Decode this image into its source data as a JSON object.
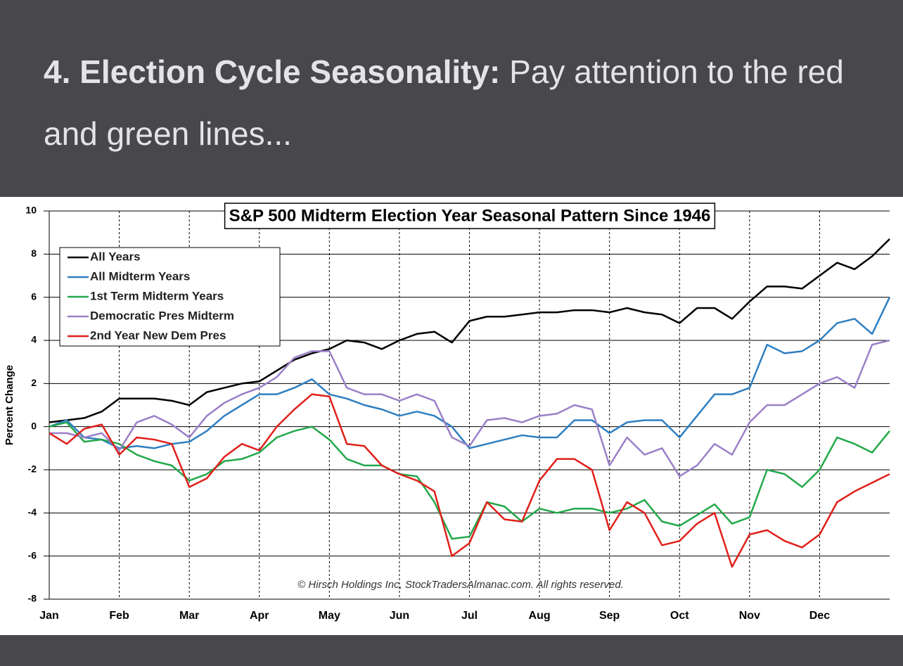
{
  "header": {
    "bold": "4. Election Cycle Seasonality:",
    "text": "Pay attention to the red and green lines..."
  },
  "chart_data": {
    "type": "line",
    "title": "S&P 500 Midterm Election Year  Seasonal Pattern Since 1946",
    "ylabel": "Percent Change",
    "annotation": "© Hirsch Holdings Inc, StockTradersAlmanac.com. All rights reserved.",
    "categories": [
      "Jan",
      null,
      null,
      null,
      "Feb",
      null,
      null,
      null,
      "Mar",
      null,
      null,
      null,
      "Apr",
      null,
      null,
      null,
      "May",
      null,
      null,
      null,
      "Jun",
      null,
      null,
      null,
      "Jul",
      null,
      null,
      null,
      "Aug",
      null,
      null,
      null,
      "Sep",
      null,
      null,
      null,
      "Oct",
      null,
      null,
      null,
      "Nov",
      null,
      null,
      null,
      "Dec",
      null,
      null,
      null,
      null
    ],
    "ylim": [
      -8,
      10
    ],
    "yticks": [
      -8,
      -6,
      -4,
      -2,
      0,
      2,
      4,
      6,
      8,
      10
    ],
    "grid": true,
    "legend": "upper left",
    "series": [
      {
        "name": "All Years",
        "color": "#000000",
        "values": [
          0.2,
          0.3,
          0.4,
          0.7,
          1.3,
          1.3,
          1.3,
          1.2,
          1.0,
          1.6,
          1.8,
          2.0,
          2.1,
          2.6,
          3.1,
          3.4,
          3.6,
          4.0,
          3.9,
          3.6,
          4.0,
          4.3,
          4.4,
          3.9,
          4.9,
          5.1,
          5.1,
          5.2,
          5.3,
          5.3,
          5.4,
          5.4,
          5.3,
          5.5,
          5.3,
          5.2,
          4.8,
          5.5,
          5.5,
          5.0,
          5.8,
          6.5,
          6.5,
          6.4,
          7.0,
          7.6,
          7.3,
          7.9,
          8.7
        ]
      },
      {
        "name": "All Midterm Years",
        "color": "#2f7fc1",
        "values": [
          0,
          0.3,
          -0.5,
          -0.6,
          -1.0,
          -0.9,
          -1.0,
          -0.8,
          -0.7,
          -0.2,
          0.5,
          1.0,
          1.5,
          1.5,
          1.8,
          2.2,
          1.5,
          1.3,
          1.0,
          0.8,
          0.5,
          0.7,
          0.5,
          0,
          -1.0,
          -0.8,
          -0.6,
          -0.4,
          -0.5,
          -0.5,
          0.3,
          0.3,
          -0.3,
          0.2,
          0.3,
          0.3,
          -0.5,
          0.5,
          1.5,
          1.5,
          1.8,
          3.8,
          3.4,
          3.5,
          4.0,
          4.8,
          5.0,
          4.3,
          6.0
        ]
      },
      {
        "name": "1st Term Midterm Years",
        "color": "#23a84a",
        "values": [
          0,
          0.2,
          -0.7,
          -0.6,
          -0.8,
          -1.3,
          -1.6,
          -1.8,
          -2.5,
          -2.2,
          -1.6,
          -1.5,
          -1.2,
          -0.5,
          -0.2,
          0,
          -0.6,
          -1.5,
          -1.8,
          -1.8,
          -2.2,
          -2.3,
          -3.5,
          -5.2,
          -5.1,
          -3.5,
          -3.7,
          -4.4,
          -3.8,
          -4.0,
          -3.8,
          -3.8,
          -4.0,
          -3.8,
          -3.4,
          -4.4,
          -4.6,
          -4.1,
          -3.6,
          -4.5,
          -4.2,
          -2.0,
          -2.2,
          -2.8,
          -2.0,
          -0.5,
          -0.8,
          -1.2,
          -0.2
        ]
      },
      {
        "name": "Democratic Pres Midterm",
        "color": "#9b80c8",
        "values": [
          -0.3,
          -0.3,
          -0.5,
          -0.3,
          -1.1,
          0.2,
          0.5,
          0.1,
          -0.5,
          0.5,
          1.1,
          1.5,
          1.8,
          2.3,
          3.2,
          3.5,
          3.5,
          1.8,
          1.5,
          1.5,
          1.2,
          1.5,
          1.2,
          -0.5,
          -0.9,
          0.3,
          0.4,
          0.2,
          0.5,
          0.6,
          1.0,
          0.8,
          -1.8,
          -0.5,
          -1.3,
          -1.0,
          -2.3,
          -1.8,
          -0.8,
          -1.3,
          0.2,
          1.0,
          1.0,
          1.5,
          2.0,
          2.3,
          1.8,
          3.8,
          4.0
        ]
      },
      {
        "name": "2nd Year New Dem Pres",
        "color": "#e0201b",
        "values": [
          -0.3,
          -0.8,
          -0.1,
          0.1,
          -1.3,
          -0.5,
          -0.6,
          -0.8,
          -2.8,
          -2.4,
          -1.4,
          -0.8,
          -1.1,
          0,
          0.8,
          1.5,
          1.4,
          -0.8,
          -0.9,
          -1.8,
          -2.2,
          -2.5,
          -3.0,
          -6.0,
          -5.4,
          -3.5,
          -4.3,
          -4.4,
          -2.5,
          -1.5,
          -1.5,
          -2.0,
          -4.8,
          -3.5,
          -4.0,
          -5.5,
          -5.3,
          -4.5,
          -4.0,
          -6.5,
          -5.0,
          -4.8,
          -5.3,
          -5.6,
          -5.0,
          -3.5,
          -3.0,
          -2.6,
          -2.2
        ]
      }
    ]
  }
}
